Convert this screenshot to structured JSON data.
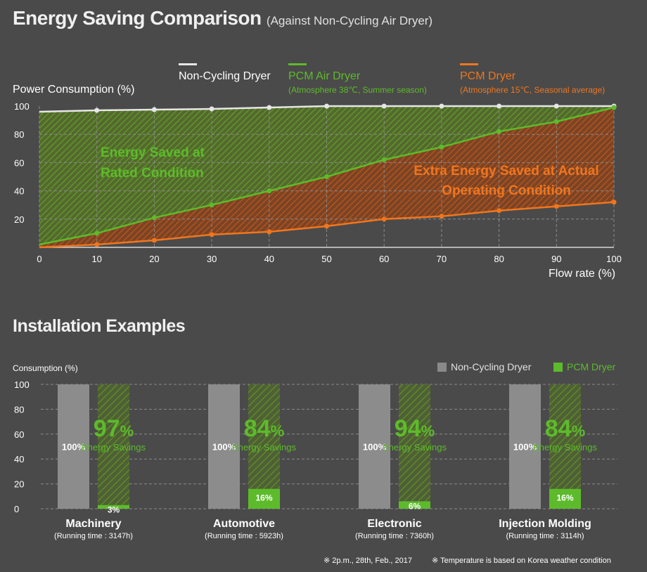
{
  "title": "Energy Saving Comparison",
  "subtitle": "(Against Non-Cycling Air Dryer)",
  "section2_title": "Installation Examples",
  "colors": {
    "non_cycling": "#e6e6e6",
    "pcm_air": "#5dbb2b",
    "pcm": "#f0761e",
    "bg": "#4a4a4a"
  },
  "chart_data": [
    {
      "type": "line",
      "title": "Energy Saving Comparison",
      "ylabel": "Power Consumption (%)",
      "xlabel": "Flow rate (%)",
      "xlim": [
        0,
        100
      ],
      "ylim": [
        0,
        100
      ],
      "x": [
        0,
        10,
        20,
        30,
        40,
        50,
        60,
        70,
        80,
        90,
        100
      ],
      "x_ticks": [
        "0",
        "10",
        "20",
        "30",
        "40",
        "50",
        "60",
        "70",
        "80",
        "90",
        "100"
      ],
      "y_ticks": [
        "100",
        "80",
        "60",
        "40",
        "20"
      ],
      "grid": true,
      "legend_position": "top",
      "series": [
        {
          "name": "Non-Cycling Dryer",
          "note": "",
          "values": [
            96,
            97,
            97.5,
            98,
            99,
            100,
            100,
            100,
            100,
            100,
            100
          ]
        },
        {
          "name": "PCM Air Dryer",
          "note": "(Atmosphere 38℃, Summer season)",
          "values": [
            2,
            10,
            21,
            30,
            40,
            50,
            62,
            71,
            82,
            89,
            99
          ]
        },
        {
          "name": "PCM Dryer",
          "note": "(Atmosphere 15℃, Seasonal average)",
          "values": [
            0,
            2,
            5,
            9,
            11,
            15,
            20,
            22,
            26,
            29,
            32
          ]
        }
      ],
      "annotations": [
        {
          "lines": [
            "Energy Saved at",
            "Rated Condition"
          ],
          "color": "#5dbb2b"
        },
        {
          "lines": [
            "Extra Energy Saved at Actual",
            "Operating Condition"
          ],
          "color": "#f0761e"
        }
      ]
    },
    {
      "type": "bar",
      "ylabel": "Consumption (%)",
      "ylim": [
        0,
        100
      ],
      "y_ticks": [
        "100",
        "80",
        "60",
        "40",
        "20",
        "0"
      ],
      "legend": [
        "Non-Cycling Dryer",
        "PCM Dryer"
      ],
      "legend_position": "top-right",
      "categories": [
        "Machinery",
        "Automotive",
        "Electronic",
        "Injection Molding"
      ],
      "running_times": [
        "(Running time : 3147h)",
        "(Running time : 5923h)",
        "(Running time : 7360h)",
        "(Running time : 3114h)"
      ],
      "series": [
        {
          "name": "Non-Cycling Dryer",
          "values": [
            100,
            100,
            100,
            100
          ],
          "labels": [
            "100%",
            "100%",
            "100%",
            "100%"
          ]
        },
        {
          "name": "PCM Dryer",
          "values": [
            3,
            16,
            6,
            16
          ],
          "labels": [
            "3%",
            "16%",
            "6%",
            "16%"
          ]
        }
      ],
      "savings": [
        {
          "value": "97",
          "unit": "%",
          "label": "Energy Savings"
        },
        {
          "value": "84",
          "unit": "%",
          "label": "Energy Savings"
        },
        {
          "value": "94",
          "unit": "%",
          "label": "Energy Savings"
        },
        {
          "value": "84",
          "unit": "%",
          "label": "Energy Savings"
        }
      ]
    }
  ],
  "footnotes": [
    "※ 2p.m., 28th, Feb., 2017",
    "※ Temperature is based on Korea weather condition"
  ]
}
